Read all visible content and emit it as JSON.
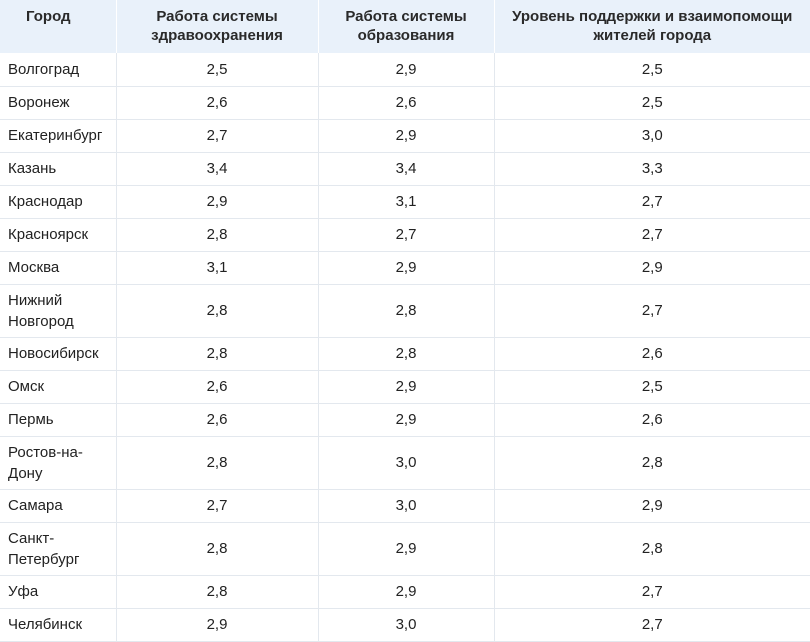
{
  "table": {
    "headers": {
      "city": "Город",
      "health": "Работа системы здравоохранения",
      "education": "Работа системы образования",
      "support": "Уровень поддержки и взаимопомощи жителей города"
    },
    "rows": [
      {
        "city": "Волгоград",
        "health": "2,5",
        "education": "2,9",
        "support": "2,5"
      },
      {
        "city": "Воронеж",
        "health": "2,6",
        "education": "2,6",
        "support": "2,5"
      },
      {
        "city": "Екатеринбург",
        "health": "2,7",
        "education": "2,9",
        "support": "3,0"
      },
      {
        "city": "Казань",
        "health": "3,4",
        "education": "3,4",
        "support": "3,3"
      },
      {
        "city": "Краснодар",
        "health": "2,9",
        "education": "3,1",
        "support": "2,7"
      },
      {
        "city": "Красноярск",
        "health": "2,8",
        "education": "2,7",
        "support": "2,7"
      },
      {
        "city": "Москва",
        "health": "3,1",
        "education": "2,9",
        "support": "2,9"
      },
      {
        "city": "Нижний Новгород",
        "health": "2,8",
        "education": "2,8",
        "support": "2,7"
      },
      {
        "city": "Новосибирск",
        "health": "2,8",
        "education": "2,8",
        "support": "2,6"
      },
      {
        "city": "Омск",
        "health": "2,6",
        "education": "2,9",
        "support": "2,5"
      },
      {
        "city": "Пермь",
        "health": "2,6",
        "education": "2,9",
        "support": "2,6"
      },
      {
        "city": "Ростов-на-Дону",
        "health": "2,8",
        "education": "3,0",
        "support": "2,8"
      },
      {
        "city": "Самара",
        "health": "2,7",
        "education": "3,0",
        "support": "2,9"
      },
      {
        "city": "Санкт-Петербург",
        "health": "2,8",
        "education": "2,9",
        "support": "2,8"
      },
      {
        "city": "Уфа",
        "health": "2,8",
        "education": "2,9",
        "support": "2,7"
      },
      {
        "city": "Челябинск",
        "health": "2,9",
        "education": "3,0",
        "support": "2,7"
      }
    ]
  }
}
